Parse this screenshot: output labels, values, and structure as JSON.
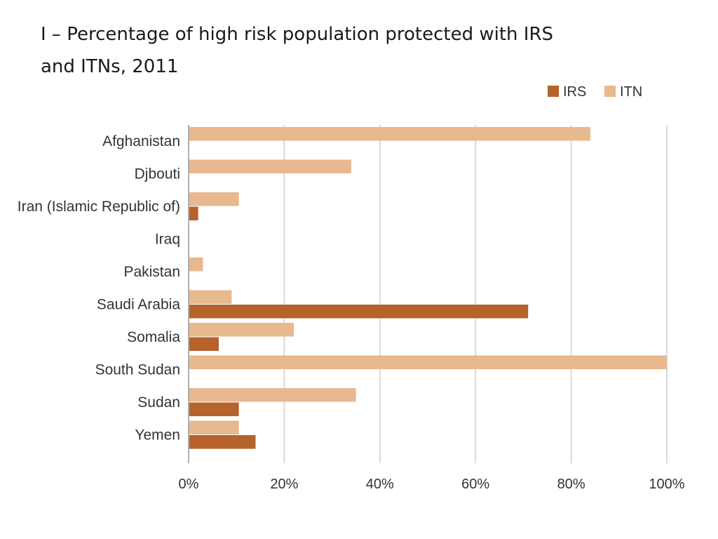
{
  "chart_data": {
    "type": "bar",
    "orientation": "horizontal",
    "title_line1": "I – Percentage of high risk population protected with IRS",
    "title_line2": "and ITNs,   2011",
    "categories": [
      "Afghanistan",
      "Djbouti",
      "Iran (Islamic Republic of)",
      "Iraq",
      "Pakistan",
      "Saudi Arabia",
      "Somalia",
      "South Sudan",
      "Sudan",
      "Yemen"
    ],
    "series": [
      {
        "name": "ITN",
        "color": "#e8b88f",
        "values": [
          84,
          34,
          10.5,
          0,
          3,
          9,
          22,
          100,
          35,
          10.5
        ]
      },
      {
        "name": "IRS",
        "color": "#b5622b",
        "values": [
          0,
          0,
          2,
          0,
          0,
          71,
          6.3,
          0,
          10.5,
          14
        ]
      }
    ],
    "legend_order": [
      "IRS",
      "ITN"
    ],
    "legend_position": "top-right",
    "xlim": [
      0,
      100
    ],
    "xticks": [
      "0%",
      "20%",
      "40%",
      "60%",
      "80%",
      "100%"
    ],
    "grid": true,
    "colors": {
      "grid": "#d9d9d9",
      "axis": "#b0b0b0"
    }
  }
}
